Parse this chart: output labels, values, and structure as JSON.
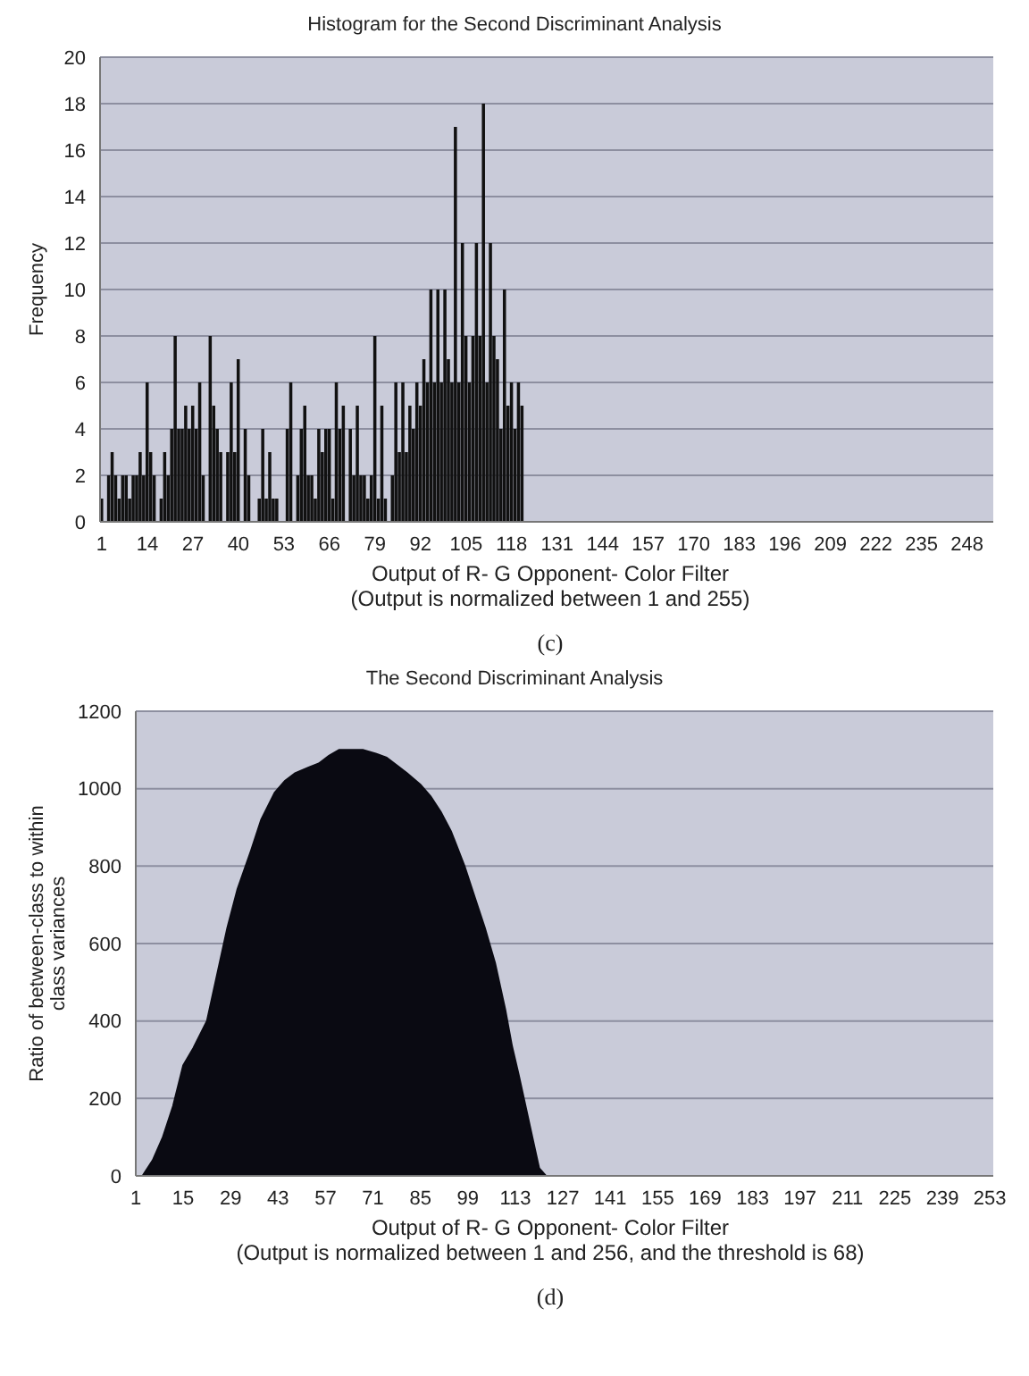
{
  "chart_data": [
    {
      "type": "bar",
      "title": "Histogram for the Second Discriminant Analysis",
      "xlabel": "Output of R- G Opponent- Color Filter\n(Output is normalized between 1 and 255)",
      "ylabel": "Frequency",
      "annotations": [
        "(c)"
      ],
      "color": "#111111",
      "grid": "y",
      "x": [
        1,
        2,
        3,
        4,
        5,
        6,
        7,
        8,
        9,
        10,
        11,
        12,
        13,
        14,
        15,
        16,
        17,
        18,
        19,
        20,
        21,
        22,
        23,
        24,
        25,
        26,
        27,
        28,
        29,
        30,
        31,
        32,
        33,
        34,
        35,
        36,
        37,
        38,
        39,
        40,
        41,
        42,
        43,
        44,
        45,
        46,
        47,
        48,
        49,
        50,
        51,
        52,
        53,
        54,
        55,
        56,
        57,
        58,
        59,
        60,
        61,
        62,
        63,
        64,
        65,
        66,
        67,
        68,
        69,
        70,
        71,
        72,
        73,
        74,
        75,
        76,
        77,
        78,
        79,
        80,
        81,
        82,
        83,
        84,
        85,
        86,
        87,
        88,
        89,
        90,
        91,
        92,
        93,
        94,
        95,
        96,
        97,
        98,
        99,
        100,
        101,
        102,
        103,
        104,
        105,
        106,
        107,
        108,
        109,
        110,
        111,
        112,
        113,
        114,
        115,
        116,
        117,
        118,
        119,
        120,
        121
      ],
      "values": [
        1,
        0,
        2,
        3,
        2,
        1,
        2,
        2,
        1,
        2,
        2,
        3,
        2,
        6,
        3,
        2,
        0,
        1,
        3,
        2,
        4,
        8,
        4,
        4,
        5,
        4,
        5,
        4,
        6,
        2,
        0,
        8,
        5,
        4,
        3,
        0,
        3,
        6,
        3,
        7,
        0,
        4,
        2,
        0,
        0,
        1,
        4,
        1,
        3,
        1,
        1,
        0,
        0,
        4,
        6,
        0,
        2,
        4,
        5,
        2,
        2,
        1,
        4,
        3,
        4,
        4,
        1,
        6,
        4,
        5,
        0,
        4,
        2,
        5,
        2,
        2,
        1,
        2,
        8,
        1,
        5,
        1,
        0,
        2,
        6,
        3,
        6,
        3,
        5,
        4,
        6,
        5,
        7,
        6,
        10,
        6,
        10,
        6,
        10,
        7,
        6,
        17,
        6,
        12,
        8,
        6,
        8,
        12,
        8,
        18,
        6,
        12,
        8,
        7,
        4,
        10,
        5,
        6,
        4,
        6,
        5
      ],
      "xlim": [
        0.5,
        255.5
      ],
      "xticks": [
        1,
        14,
        27,
        40,
        53,
        66,
        79,
        92,
        105,
        118,
        131,
        144,
        157,
        170,
        183,
        196,
        209,
        222,
        235,
        248
      ],
      "ylim": [
        0,
        20
      ],
      "yticks": [
        0,
        2,
        4,
        6,
        8,
        10,
        12,
        14,
        16,
        18,
        20
      ]
    },
    {
      "type": "area",
      "title": "The Second Discriminant Analysis",
      "xlabel": "Output of R- G Opponent- Color Filter\n(Output is normalized between 1 and 256, and the threshold is 68)",
      "ylabel": "Ratio of between-class to within\nclass variances",
      "annotations": [
        "(d)"
      ],
      "color": "#0a0a12",
      "grid": "y",
      "x": [
        1,
        3,
        6,
        9,
        12,
        15,
        18,
        22,
        25,
        28,
        31,
        35,
        38,
        42,
        45,
        48,
        52,
        55,
        58,
        61,
        65,
        68,
        72,
        75,
        78,
        81,
        85,
        88,
        91,
        94,
        98,
        101,
        104,
        107,
        110,
        112,
        114,
        116,
        118,
        120,
        122,
        124,
        127,
        130,
        140,
        160,
        200,
        253
      ],
      "values": [
        0,
        0,
        40,
        100,
        180,
        285,
        330,
        400,
        520,
        640,
        740,
        840,
        920,
        990,
        1020,
        1040,
        1055,
        1065,
        1085,
        1100,
        1100,
        1100,
        1090,
        1080,
        1060,
        1040,
        1010,
        980,
        940,
        890,
        800,
        720,
        640,
        550,
        430,
        335,
        260,
        180,
        100,
        20,
        0,
        0,
        0,
        0,
        0,
        0,
        0,
        0
      ],
      "xlim": [
        1,
        254
      ],
      "xticks": [
        1,
        15,
        29,
        43,
        57,
        71,
        85,
        99,
        113,
        127,
        141,
        155,
        169,
        183,
        197,
        211,
        225,
        239,
        253
      ],
      "ylim": [
        0,
        1200
      ],
      "yticks": [
        0,
        200,
        400,
        600,
        800,
        1000,
        1200
      ]
    }
  ]
}
